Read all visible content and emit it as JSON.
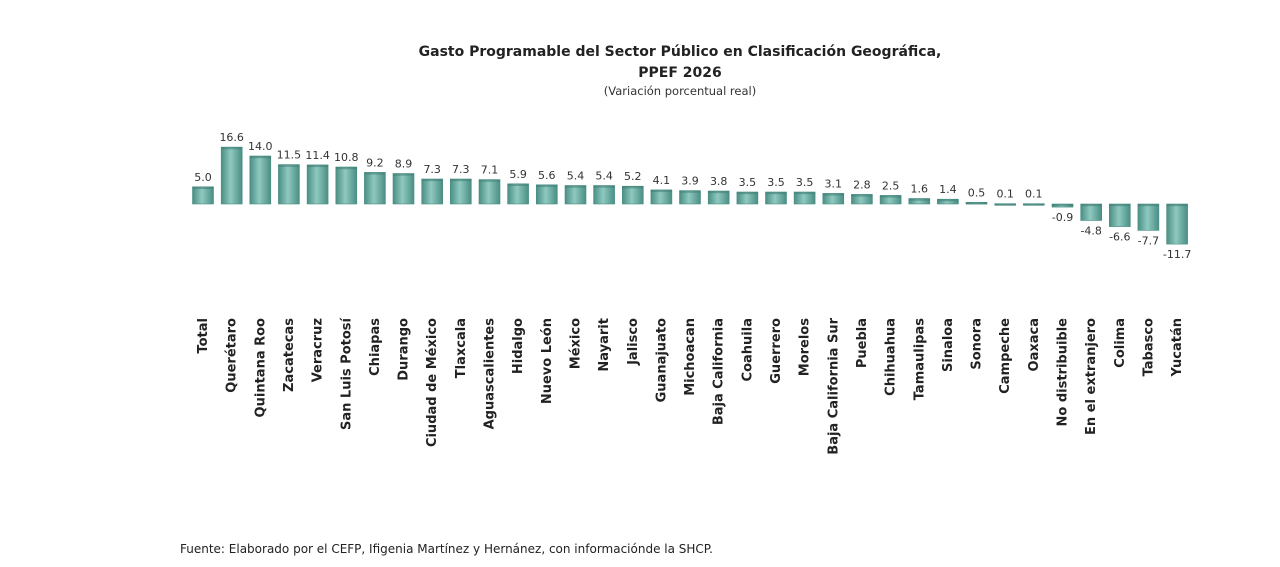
{
  "chart_data": {
    "type": "bar",
    "title": "Gasto Programable del Sector Público en Clasificación Geográfica,",
    "subtitle": "PPEF 2026",
    "note": "(Variación porcentual real)",
    "xlabel": "",
    "ylabel": "",
    "ylim": [
      -11.7,
      16.6
    ],
    "grid": false,
    "legend": "none",
    "categories": [
      "Total",
      "Querétaro",
      "Quintana Roo",
      "Zacatecas",
      "Veracruz",
      "San Luis Potosí",
      "Chiapas",
      "Durango",
      "Ciudad de México",
      "Tlaxcala",
      "Aguascalientes",
      "Hidalgo",
      "Nuevo León",
      "México",
      "Nayarit",
      "Jalisco",
      "Guanajuato",
      "Michoacan",
      "Baja California",
      "Coahuila",
      "Guerrero",
      "Morelos",
      "Baja California Sur",
      "Puebla",
      "Chihuahua",
      "Tamaulipas",
      "Sinaloa",
      "Sonora",
      "Campeche",
      "Oaxaca",
      "No distribuible",
      "En el extranjero",
      "Colima",
      "Tabasco",
      "Yucatán"
    ],
    "values": [
      5.0,
      16.6,
      14.0,
      11.5,
      11.4,
      10.8,
      9.2,
      8.9,
      7.3,
      7.3,
      7.1,
      5.9,
      5.6,
      5.4,
      5.4,
      5.2,
      4.1,
      3.9,
      3.8,
      3.5,
      3.5,
      3.5,
      3.1,
      2.8,
      2.5,
      1.6,
      1.4,
      0.5,
      0.1,
      0.1,
      -0.9,
      -4.8,
      -6.6,
      -7.7,
      -11.7
    ],
    "labels": [
      "5.0",
      "16.6",
      "14.0",
      "11.5",
      "11.4",
      "10.8",
      "9.2",
      "8.9",
      "7.3",
      "7.3",
      "7.1",
      "5.9",
      "5.6",
      "5.4",
      "5.4",
      "5.2",
      "4.1",
      "3.9",
      "3.8",
      "3.5",
      "3.5",
      "3.5",
      "3.1",
      "2.8",
      "2.5",
      "1.6",
      "1.4",
      "0.5",
      "0.1",
      "0.1",
      "-0.9",
      "-4.8",
      "-6.6",
      "-7.7",
      "-11.7"
    ],
    "bar_color": "#8fc9bf",
    "bar_dark": "#4a8e84"
  },
  "source": "Fuente: Elaborado por el CEFP, Ifigenia Martínez y Hernánez, con informaciónde la SHCP."
}
